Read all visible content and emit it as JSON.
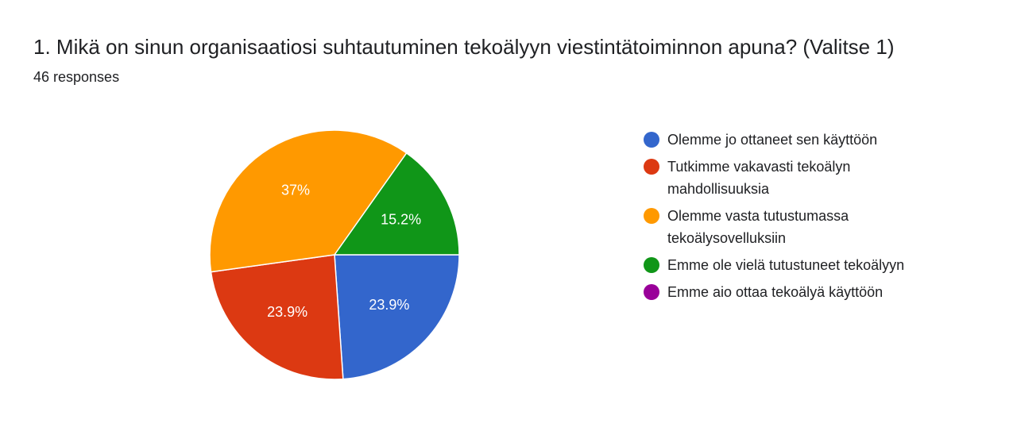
{
  "chart_data": {
    "type": "pie",
    "title": "1. Mikä on sinun organisaatiosi suhtautuminen tekoälyyn viestintätoiminnon apuna? (Valitse 1)",
    "subtitle": "46 responses",
    "categories": [
      "Olemme jo ottaneet sen käyttöön",
      "Tutkimme vakavasti tekoälyn mahdollisuuksia",
      "Olemme vasta tutustumassa tekoälysovelluksiin",
      "Emme ole vielä tutustuneet tekoälyyn",
      "Emme aio ottaa tekoälyä käyttöön"
    ],
    "values": [
      23.9,
      23.9,
      37,
      15.2,
      0
    ],
    "value_labels": [
      "23.9%",
      "23.9%",
      "37%",
      "15.2%",
      null
    ],
    "colors": [
      "#3366cc",
      "#dc3912",
      "#ff9900",
      "#109618",
      "#990099"
    ],
    "legend": "right"
  }
}
